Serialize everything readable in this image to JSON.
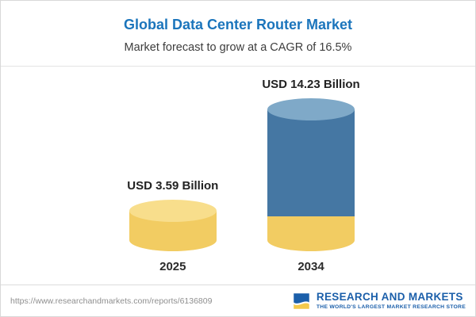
{
  "header": {
    "title": "Global Data Center Router Market",
    "subtitle": "Market forecast to grow at a CAGR of 16.5%"
  },
  "chart_data": {
    "type": "bar",
    "title": "Global Data Center Router Market",
    "subtitle": "Market forecast to grow at a CAGR of 16.5%",
    "unit": "USD Billion",
    "cagr_percent": 16.5,
    "categories": [
      "2025",
      "2034"
    ],
    "values": [
      3.59,
      14.23
    ],
    "ylim": [
      0,
      16
    ],
    "grid": false,
    "legend": false,
    "bars": [
      {
        "category": "2025",
        "value": 3.59,
        "label": "USD 3.59 Billion",
        "colors": {
          "top": "#F8DE8C",
          "body": "#F2CC62",
          "band": "#F2CC62"
        }
      },
      {
        "category": "2034",
        "value": 14.23,
        "label": "USD 14.23 Billion",
        "colors": {
          "top": "#7FA9C8",
          "body": "#4577A3",
          "band": "#F2CC62"
        }
      }
    ]
  },
  "footer": {
    "url": "https://www.researchandmarkets.com/reports/6136809",
    "logo": {
      "name": "RESEARCH AND MARKETS",
      "tagline": "THE WORLD'S LARGEST MARKET RESEARCH STORE"
    }
  },
  "colors": {
    "title_blue": "#1B75BC",
    "logo_blue": "#1B5FAA",
    "accent_yellow": "#F2C94C"
  }
}
